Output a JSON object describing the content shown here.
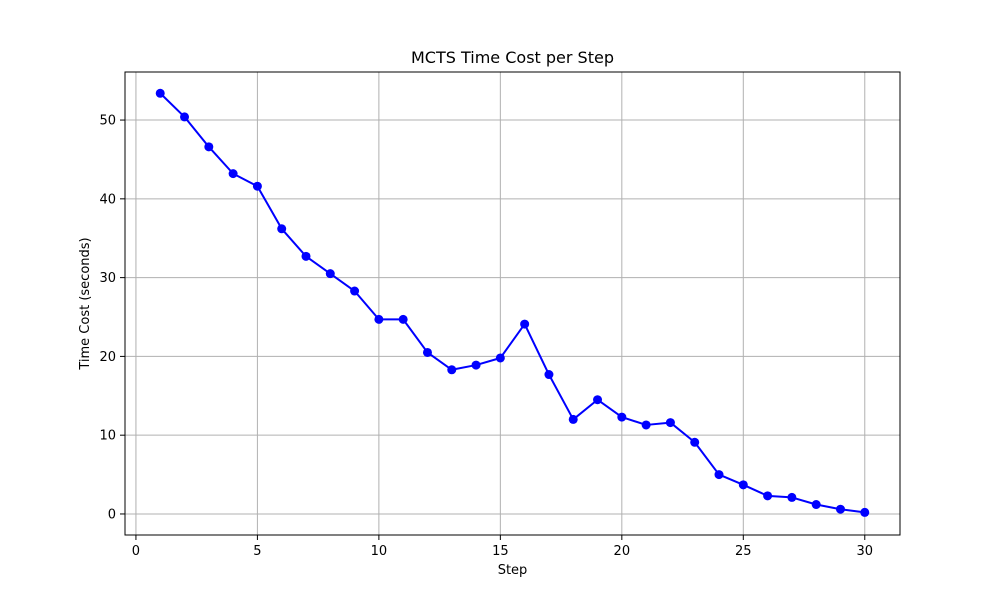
{
  "chart_data": {
    "type": "line",
    "title": "MCTS Time Cost per Step",
    "xlabel": "Step",
    "ylabel": "Time Cost (seconds)",
    "xlim": [
      -0.45,
      31.45
    ],
    "ylim": [
      -2.67,
      56.1
    ],
    "xticks": [
      0,
      5,
      10,
      15,
      20,
      25,
      30
    ],
    "yticks": [
      0,
      10,
      20,
      30,
      40,
      50
    ],
    "grid": true,
    "legend": "none",
    "series": [
      {
        "color": "#0000ff",
        "marker": "circle",
        "x": [
          1,
          2,
          3,
          4,
          5,
          6,
          7,
          8,
          9,
          10,
          11,
          12,
          13,
          14,
          15,
          16,
          17,
          18,
          19,
          20,
          21,
          22,
          23,
          24,
          25,
          26,
          27,
          28,
          29,
          30
        ],
        "y": [
          53.4,
          50.4,
          46.6,
          43.2,
          41.6,
          36.2,
          32.7,
          30.5,
          28.3,
          24.7,
          24.7,
          20.5,
          18.3,
          18.9,
          19.8,
          24.1,
          17.7,
          12.0,
          14.5,
          12.3,
          11.3,
          11.6,
          9.1,
          5.0,
          3.7,
          2.3,
          2.1,
          1.2,
          0.6,
          0.2
        ]
      }
    ],
    "colors": {
      "grid": "#b0b0b0",
      "axes": "#000000",
      "background": "#ffffff"
    }
  }
}
